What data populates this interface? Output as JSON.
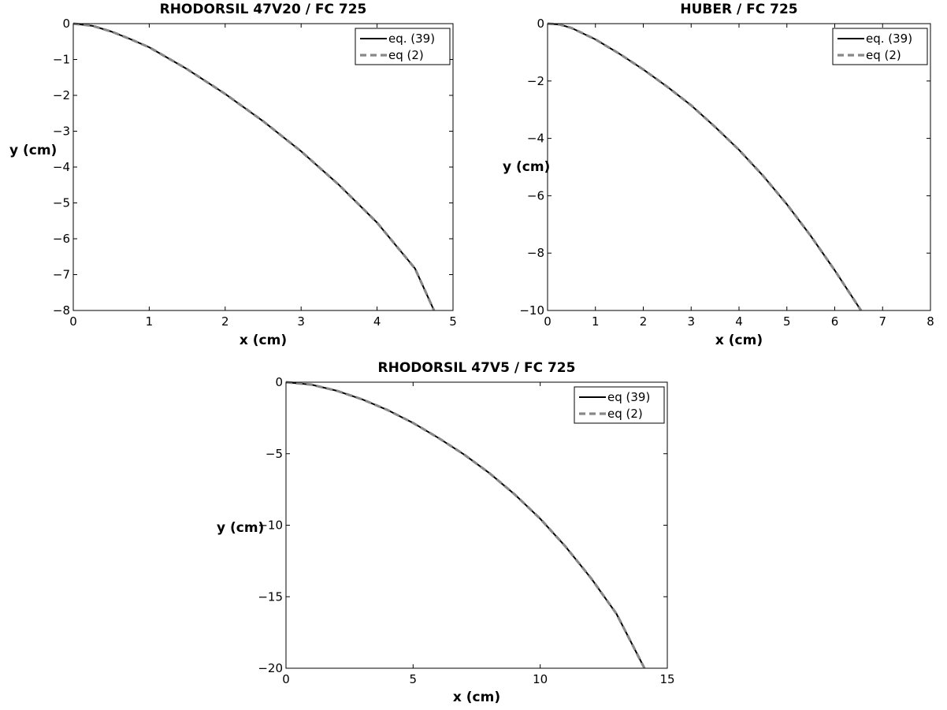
{
  "chart_data": [
    {
      "type": "line",
      "title": "RHODORSIL 47V20 / FC 725",
      "xlabel": "x (cm)",
      "ylabel": "y (cm)",
      "xlim": [
        0,
        5
      ],
      "ylim": [
        -8,
        0
      ],
      "xticks": [
        0,
        1,
        2,
        3,
        4,
        5
      ],
      "yticks": [
        0,
        -1,
        -2,
        -3,
        -4,
        -5,
        -6,
        -7,
        -8
      ],
      "grid": false,
      "legend_position": "top-right",
      "series": [
        {
          "name": "eq. (39)",
          "color": "#000000",
          "style": "solid",
          "x": [
            0,
            0.25,
            0.5,
            0.75,
            1.0,
            1.5,
            2.0,
            2.5,
            3.0,
            3.5,
            4.0,
            4.5,
            4.75
          ],
          "y": [
            0,
            -0.06,
            -0.22,
            -0.43,
            -0.66,
            -1.27,
            -1.96,
            -2.72,
            -3.56,
            -4.5,
            -5.55,
            -6.83,
            -8.0
          ]
        },
        {
          "name": "eq (2)",
          "color": "#888888",
          "style": "dashed",
          "x": [
            0,
            0.25,
            0.5,
            0.75,
            1.0,
            1.5,
            2.0,
            2.5,
            3.0,
            3.5,
            4.0,
            4.5,
            4.75
          ],
          "y": [
            0,
            -0.06,
            -0.22,
            -0.43,
            -0.66,
            -1.27,
            -1.96,
            -2.72,
            -3.56,
            -4.5,
            -5.55,
            -6.83,
            -8.0
          ]
        }
      ]
    },
    {
      "type": "line",
      "title": "HUBER / FC 725",
      "xlabel": "x (cm)",
      "ylabel": "y (cm)",
      "xlim": [
        0,
        8
      ],
      "ylim": [
        -10,
        0
      ],
      "xticks": [
        0,
        1,
        2,
        3,
        4,
        5,
        6,
        7,
        8
      ],
      "yticks": [
        0,
        -2,
        -4,
        -6,
        -8,
        -10
      ],
      "grid": false,
      "legend_position": "top-right",
      "series": [
        {
          "name": "eq. (39)",
          "color": "#000000",
          "style": "solid",
          "x": [
            0,
            0.25,
            0.5,
            1.0,
            1.5,
            2.0,
            2.5,
            3.0,
            3.5,
            4.0,
            4.5,
            5.0,
            5.5,
            6.0,
            6.55
          ],
          "y": [
            0,
            -0.03,
            -0.15,
            -0.55,
            -1.05,
            -1.6,
            -2.2,
            -2.85,
            -3.6,
            -4.4,
            -5.3,
            -6.3,
            -7.4,
            -8.6,
            -10.0
          ]
        },
        {
          "name": "eq (2)",
          "color": "#888888",
          "style": "dashed",
          "x": [
            0,
            0.25,
            0.5,
            1.0,
            1.5,
            2.0,
            2.5,
            3.0,
            3.5,
            4.0,
            4.5,
            5.0,
            5.5,
            6.0,
            6.55
          ],
          "y": [
            0,
            -0.03,
            -0.15,
            -0.55,
            -1.05,
            -1.6,
            -2.2,
            -2.85,
            -3.6,
            -4.4,
            -5.3,
            -6.3,
            -7.4,
            -8.6,
            -10.0
          ]
        }
      ]
    },
    {
      "type": "line",
      "title": "RHODORSIL 47V5 / FC 725",
      "xlabel": "x (cm)",
      "ylabel": "y (cm)",
      "xlim": [
        0,
        15
      ],
      "ylim": [
        -20,
        0
      ],
      "xticks": [
        0,
        5,
        10,
        15
      ],
      "yticks": [
        0,
        -5,
        -10,
        -15,
        -20
      ],
      "grid": false,
      "legend_position": "top-right",
      "series": [
        {
          "name": "eq (39)",
          "color": "#000000",
          "style": "solid",
          "x": [
            0,
            1,
            2,
            3,
            4,
            5,
            6,
            7,
            8,
            9,
            10,
            11,
            12,
            13,
            14.1
          ],
          "y": [
            0,
            -0.17,
            -0.6,
            -1.2,
            -1.95,
            -2.85,
            -3.9,
            -5.05,
            -6.35,
            -7.85,
            -9.55,
            -11.5,
            -13.7,
            -16.2,
            -20.0
          ]
        },
        {
          "name": "eq (2)",
          "color": "#888888",
          "style": "dashed",
          "x": [
            0,
            1,
            2,
            3,
            4,
            5,
            6,
            7,
            8,
            9,
            10,
            11,
            12,
            13,
            14.1
          ],
          "y": [
            0,
            -0.17,
            -0.6,
            -1.2,
            -1.95,
            -2.85,
            -3.9,
            -5.05,
            -6.35,
            -7.85,
            -9.55,
            -11.5,
            -13.7,
            -16.2,
            -20.0
          ]
        }
      ]
    }
  ]
}
